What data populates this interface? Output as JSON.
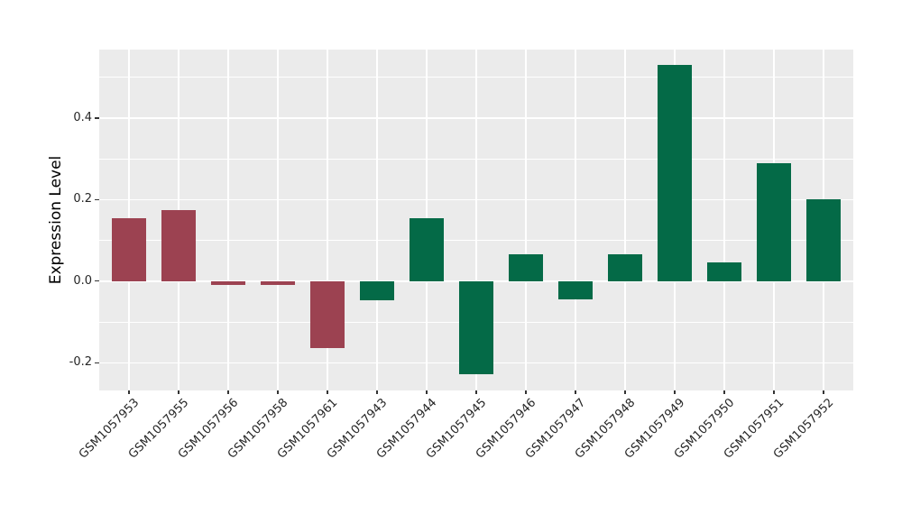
{
  "chart_data": {
    "type": "bar",
    "title": "",
    "xlabel": "",
    "ylabel": "Expression Level",
    "categories": [
      "GSM1057953",
      "GSM1057955",
      "GSM1057956",
      "GSM1057958",
      "GSM1057961",
      "GSM1057943",
      "GSM1057944",
      "GSM1057945",
      "GSM1057946",
      "GSM1057947",
      "GSM1057948",
      "GSM1057949",
      "GSM1057950",
      "GSM1057951",
      "GSM1057952"
    ],
    "values": [
      0.155,
      0.174,
      -0.01,
      -0.01,
      -0.163,
      -0.047,
      0.155,
      -0.228,
      0.066,
      -0.045,
      0.066,
      0.53,
      0.046,
      0.289,
      0.2
    ],
    "bar_colors": [
      "#9C4251",
      "#9C4251",
      "#9C4251",
      "#9C4251",
      "#9C4251",
      "#046A47",
      "#046A47",
      "#046A47",
      "#046A47",
      "#046A47",
      "#046A47",
      "#046A47",
      "#046A47",
      "#046A47",
      "#046A47"
    ],
    "color_groups": {
      "maroon": "#9C4251",
      "green": "#046A47"
    },
    "ylim": [
      -0.268,
      0.568
    ],
    "y_ticks": [
      -0.2,
      0.0,
      0.2,
      0.4
    ],
    "y_tick_labels": [
      "-0.2",
      "0.0",
      "0.2",
      "0.4"
    ],
    "y_minor_ticks": [
      -0.1,
      0.1,
      0.3,
      0.5
    ],
    "grid": "on",
    "legend": "none",
    "panel_background": "#EBEBEB",
    "grid_color": "#FFFFFF",
    "x_tick_rotation_deg": 45
  }
}
